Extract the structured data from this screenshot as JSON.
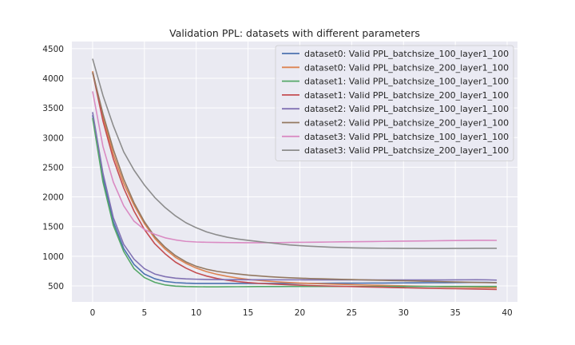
{
  "chart_data": {
    "type": "line",
    "title": "Validation PPL: datasets with different parameters",
    "xlabel": "",
    "ylabel": "",
    "xlim": [
      -2,
      41
    ],
    "ylim": [
      230,
      4620
    ],
    "x_ticks": [
      0,
      5,
      10,
      15,
      20,
      25,
      30,
      35,
      40
    ],
    "y_ticks": [
      500,
      1000,
      1500,
      2000,
      2500,
      3000,
      3500,
      4000,
      4500
    ],
    "grid": true,
    "legend_position": "top-right",
    "x": [
      0,
      1,
      2,
      3,
      4,
      5,
      6,
      7,
      8,
      9,
      10,
      11,
      12,
      13,
      14,
      15,
      16,
      17,
      18,
      19,
      20,
      21,
      22,
      23,
      24,
      25,
      26,
      27,
      28,
      29,
      30,
      31,
      32,
      33,
      34,
      35,
      36,
      37,
      38,
      39
    ],
    "series": [
      {
        "name": "dataset0: Valid PPL_batchsize_100_layer1_100",
        "color": "#4c72b0",
        "values": [
          3380,
          2320,
          1580,
          1130,
          860,
          700,
          620,
          575,
          555,
          545,
          540,
          540,
          540,
          540,
          540,
          540,
          540,
          541,
          541,
          542,
          542,
          542,
          543,
          544,
          545,
          545,
          546,
          547,
          548,
          549,
          550,
          551,
          552,
          553,
          554,
          556,
          558,
          560,
          560,
          555
        ]
      },
      {
        "name": "dataset0: Valid PPL_batchsize_200_layer1_100",
        "color": "#dd8452",
        "values": [
          4120,
          3350,
          2720,
          2230,
          1860,
          1550,
          1300,
          1120,
          980,
          880,
          800,
          740,
          695,
          660,
          632,
          610,
          592,
          578,
          566,
          556,
          548,
          541,
          535,
          530,
          525,
          520,
          516,
          512,
          508,
          504,
          500,
          496,
          492,
          488,
          484,
          480,
          476,
          473,
          470,
          468
        ]
      },
      {
        "name": "dataset1: Valid PPL_batchsize_100_layer1_100",
        "color": "#55a868",
        "values": [
          3330,
          2250,
          1520,
          1080,
          790,
          640,
          560,
          515,
          495,
          488,
          485,
          484,
          484,
          485,
          486,
          487,
          488,
          489,
          489,
          490,
          490,
          490,
          490,
          490,
          490,
          490,
          490,
          490,
          490,
          490,
          490,
          490,
          490,
          490,
          490,
          490,
          490,
          490,
          490,
          490
        ]
      },
      {
        "name": "dataset1: Valid PPL_batchsize_200_layer1_100",
        "color": "#c44e52",
        "values": [
          4100,
          3280,
          2640,
          2150,
          1760,
          1450,
          1210,
          1040,
          900,
          800,
          720,
          665,
          625,
          595,
          573,
          556,
          543,
          533,
          525,
          518,
          512,
          506,
          501,
          496,
          492,
          488,
          484,
          480,
          476,
          472,
          468,
          465,
          462,
          458,
          455,
          452,
          449,
          446,
          443,
          440
        ]
      },
      {
        "name": "dataset2: Valid PPL_batchsize_100_layer1_100",
        "color": "#8172b3",
        "values": [
          3430,
          2400,
          1650,
          1200,
          950,
          790,
          700,
          655,
          630,
          618,
          612,
          608,
          606,
          605,
          604,
          603,
          603,
          602,
          602,
          602,
          602,
          601,
          601,
          601,
          601,
          601,
          601,
          600,
          600,
          600,
          600,
          600,
          600,
          600,
          600,
          601,
          602,
          603,
          602,
          597
        ]
      },
      {
        "name": "dataset2: Valid PPL_batchsize_200_layer1_100",
        "color": "#937860",
        "values": [
          4100,
          3400,
          2800,
          2300,
          1900,
          1580,
          1330,
          1150,
          1010,
          905,
          830,
          780,
          745,
          720,
          700,
          682,
          668,
          655,
          645,
          637,
          630,
          624,
          619,
          614,
          610,
          606,
          602,
          598,
          594,
          590,
          586,
          582,
          578,
          574,
          570,
          566,
          562,
          558,
          555,
          552
        ]
      },
      {
        "name": "dataset3: Valid PPL_batchsize_100_layer1_100",
        "color": "#da8bc3",
        "values": [
          3780,
          2850,
          2250,
          1850,
          1590,
          1450,
          1370,
          1310,
          1275,
          1250,
          1240,
          1235,
          1232,
          1230,
          1229,
          1228,
          1228,
          1229,
          1230,
          1232,
          1234,
          1236,
          1238,
          1240,
          1242,
          1244,
          1246,
          1248,
          1250,
          1252,
          1254,
          1256,
          1258,
          1260,
          1262,
          1264,
          1266,
          1268,
          1268,
          1267
        ]
      },
      {
        "name": "dataset3: Valid PPL_batchsize_200_layer1_100",
        "color": "#8c8c8c",
        "values": [
          4330,
          3710,
          3200,
          2760,
          2450,
          2200,
          1990,
          1820,
          1680,
          1565,
          1480,
          1410,
          1360,
          1320,
          1290,
          1268,
          1248,
          1228,
          1208,
          1190,
          1178,
          1168,
          1160,
          1152,
          1146,
          1142,
          1138,
          1136,
          1134,
          1133,
          1132,
          1131,
          1130,
          1130,
          1130,
          1131,
          1132,
          1133,
          1133,
          1133
        ]
      }
    ]
  }
}
